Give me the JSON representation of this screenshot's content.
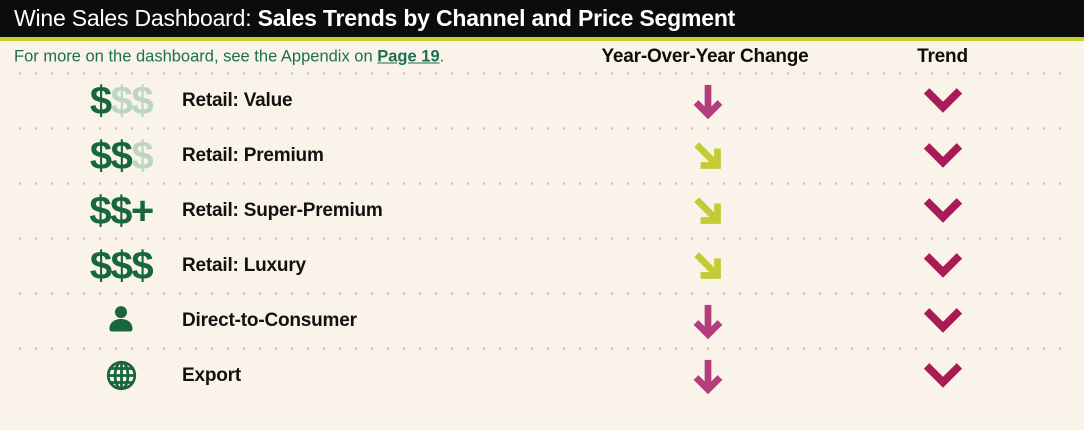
{
  "header": {
    "title_regular": "Wine Sales Dashboard: ",
    "title_bold": "Sales Trends by Channel and Price Segment"
  },
  "note": {
    "prefix": "For more on the dashboard, see the Appendix on ",
    "link": "Page 19",
    "suffix": "."
  },
  "columns": {
    "yoy": "Year-Over-Year Change",
    "trend": "Trend"
  },
  "rows": [
    {
      "label": "Retail: Value",
      "icon": "price-value-icon",
      "icon_type": "dollars",
      "glyphs": [
        {
          "ch": "$",
          "tone": "dark"
        },
        {
          "ch": "$",
          "tone": "light"
        },
        {
          "ch": "$",
          "tone": "light"
        }
      ],
      "yoy": "down",
      "trend": "down"
    },
    {
      "label": "Retail: Premium",
      "icon": "price-premium-icon",
      "icon_type": "dollars",
      "glyphs": [
        {
          "ch": "$",
          "tone": "dark"
        },
        {
          "ch": "$",
          "tone": "dark"
        },
        {
          "ch": "$",
          "tone": "light"
        }
      ],
      "yoy": "down-right",
      "trend": "down"
    },
    {
      "label": "Retail: Super-Premium",
      "icon": "price-super-premium-icon",
      "icon_type": "dollars",
      "glyphs": [
        {
          "ch": "$",
          "tone": "dark"
        },
        {
          "ch": "$",
          "tone": "dark"
        },
        {
          "ch": "+",
          "tone": "dark"
        }
      ],
      "yoy": "down-right",
      "trend": "down"
    },
    {
      "label": "Retail: Luxury",
      "icon": "price-luxury-icon",
      "icon_type": "dollars",
      "glyphs": [
        {
          "ch": "$",
          "tone": "dark"
        },
        {
          "ch": "$",
          "tone": "dark"
        },
        {
          "ch": "$",
          "tone": "dark"
        }
      ],
      "yoy": "down-right",
      "trend": "down"
    },
    {
      "label": "Direct-to-Consumer",
      "icon": "person-icon",
      "icon_type": "person",
      "yoy": "down",
      "trend": "down"
    },
    {
      "label": "Export",
      "icon": "globe-icon",
      "icon_type": "globe",
      "yoy": "down",
      "trend": "down"
    }
  ],
  "colors": {
    "background": "#f9f3e9",
    "header_bg": "#0c0c0c",
    "header_text": "#ffffff",
    "accent_line": "#c5d02f",
    "note_green": "#1d6f54",
    "icon_green_dark": "#17673a",
    "icon_green_light": "#bdd6c2",
    "arrow_down_magenta": "#b43e7d",
    "arrow_down_right_yellow_green": "#c3cc35",
    "trend_chevron_raspberry": "#a91a56",
    "row_label": "#111111",
    "dotted_separator": "#c9c1b3"
  }
}
